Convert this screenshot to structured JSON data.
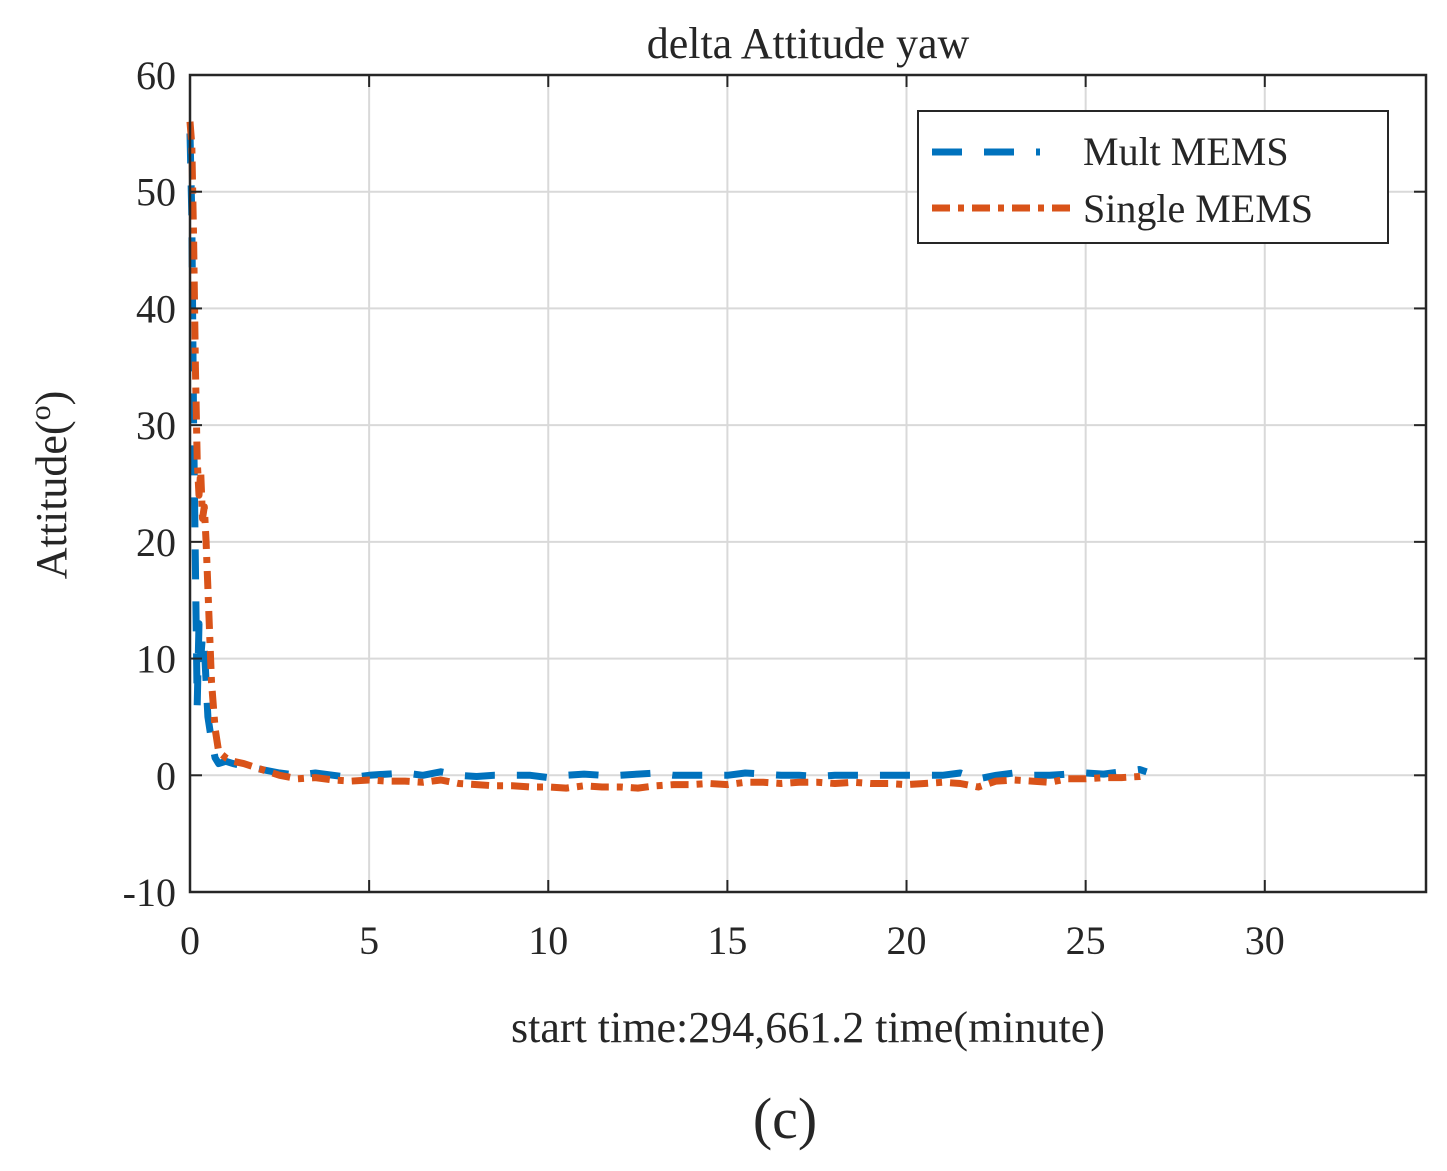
{
  "chart_data": {
    "type": "line",
    "title": "delta Attitude yaw",
    "xlabel": "start time:294,661.2 time(minute)",
    "ylabel": "Attitude(",
    "ylabel_superscript": "o",
    "ylabel_close": ")",
    "panel_label": "(c)",
    "xlim": [
      0,
      34.5
    ],
    "ylim": [
      -10,
      60
    ],
    "xticks": [
      0,
      5,
      10,
      15,
      20,
      25,
      30
    ],
    "yticks": [
      -10,
      0,
      10,
      20,
      30,
      40,
      50,
      60
    ],
    "xtick_labels": [
      "0",
      "5",
      "10",
      "15",
      "20",
      "25",
      "30"
    ],
    "ytick_labels": [
      "-10",
      "0",
      "10",
      "20",
      "30",
      "40",
      "50",
      "60"
    ],
    "grid": true,
    "legend_position": "top-right",
    "series": [
      {
        "name": "Mult MEMS",
        "color": "#0072BD",
        "style": "dashed",
        "x": [
          0,
          0.05,
          0.1,
          0.15,
          0.2,
          0.25,
          0.3,
          0.35,
          0.4,
          0.45,
          0.5,
          0.55,
          0.6,
          0.7,
          0.8,
          1.0,
          1.2,
          1.5,
          2,
          2.5,
          3,
          3.5,
          4,
          4.5,
          5,
          5.5,
          6,
          6.5,
          7,
          7.5,
          8,
          8.5,
          9,
          9.5,
          10,
          10.5,
          11,
          11.5,
          12,
          12.5,
          13,
          13.5,
          14,
          14.5,
          15,
          15.5,
          16,
          16.5,
          17,
          17.5,
          18,
          18.5,
          19,
          19.5,
          20,
          20.5,
          21,
          21.5,
          22,
          22.5,
          23,
          23.5,
          24,
          24.5,
          25,
          25.5,
          26,
          26.5,
          26.7
        ],
        "y": [
          55,
          48,
          30,
          18,
          6,
          13,
          10,
          12,
          11,
          8,
          5,
          4,
          3,
          1.5,
          1,
          1.2,
          1,
          0.8,
          0.5,
          0.2,
          0,
          0.2,
          0,
          -0.2,
          0,
          0.1,
          0.2,
          0,
          0.3,
          0,
          -0.1,
          0,
          0,
          0,
          -0.2,
          0,
          0.1,
          0,
          0,
          0.1,
          0.2,
          0,
          0,
          0,
          0,
          0.2,
          0.1,
          0,
          0,
          -0.1,
          0,
          0,
          0,
          0,
          0,
          0,
          0,
          0.2,
          -0.3,
          0,
          0.2,
          0,
          0,
          0.1,
          0.2,
          0.1,
          0.3,
          0.5,
          0.3
        ]
      },
      {
        "name": "Single MEMS",
        "color": "#D95319",
        "style": "dash-dot",
        "x": [
          0,
          0.05,
          0.1,
          0.15,
          0.2,
          0.25,
          0.3,
          0.35,
          0.4,
          0.45,
          0.5,
          0.55,
          0.6,
          0.7,
          0.8,
          1.0,
          1.2,
          1.5,
          2,
          2.5,
          3,
          3.5,
          4,
          4.5,
          5,
          5.5,
          6,
          6.5,
          7,
          7.5,
          8,
          8.5,
          9,
          9.5,
          10,
          10.5,
          11,
          11.5,
          12,
          12.5,
          13,
          13.5,
          14,
          14.5,
          15,
          15.5,
          16,
          16.5,
          17,
          17.5,
          18,
          18.5,
          19,
          19.5,
          20,
          20.5,
          21,
          21.5,
          22,
          22.5,
          23,
          23.5,
          24,
          24.5,
          25,
          25.5,
          26,
          26.5,
          26.7
        ],
        "y": [
          56,
          54,
          46,
          35,
          27,
          24,
          26,
          22,
          23,
          20,
          16,
          12,
          8,
          4,
          2,
          1.5,
          1.2,
          1,
          0.5,
          0,
          -0.3,
          -0.2,
          -0.4,
          -0.5,
          -0.4,
          -0.5,
          -0.5,
          -0.6,
          -0.4,
          -0.7,
          -0.8,
          -0.9,
          -0.9,
          -1,
          -1,
          -1.1,
          -0.9,
          -1,
          -1,
          -1.1,
          -0.9,
          -0.8,
          -0.8,
          -0.7,
          -0.8,
          -0.6,
          -0.6,
          -0.7,
          -0.6,
          -0.6,
          -0.7,
          -0.6,
          -0.7,
          -0.7,
          -0.8,
          -0.7,
          -0.6,
          -0.7,
          -1,
          -0.5,
          -0.4,
          -0.5,
          -0.6,
          -0.3,
          -0.3,
          -0.2,
          -0.2,
          -0.1,
          0
        ]
      }
    ]
  }
}
